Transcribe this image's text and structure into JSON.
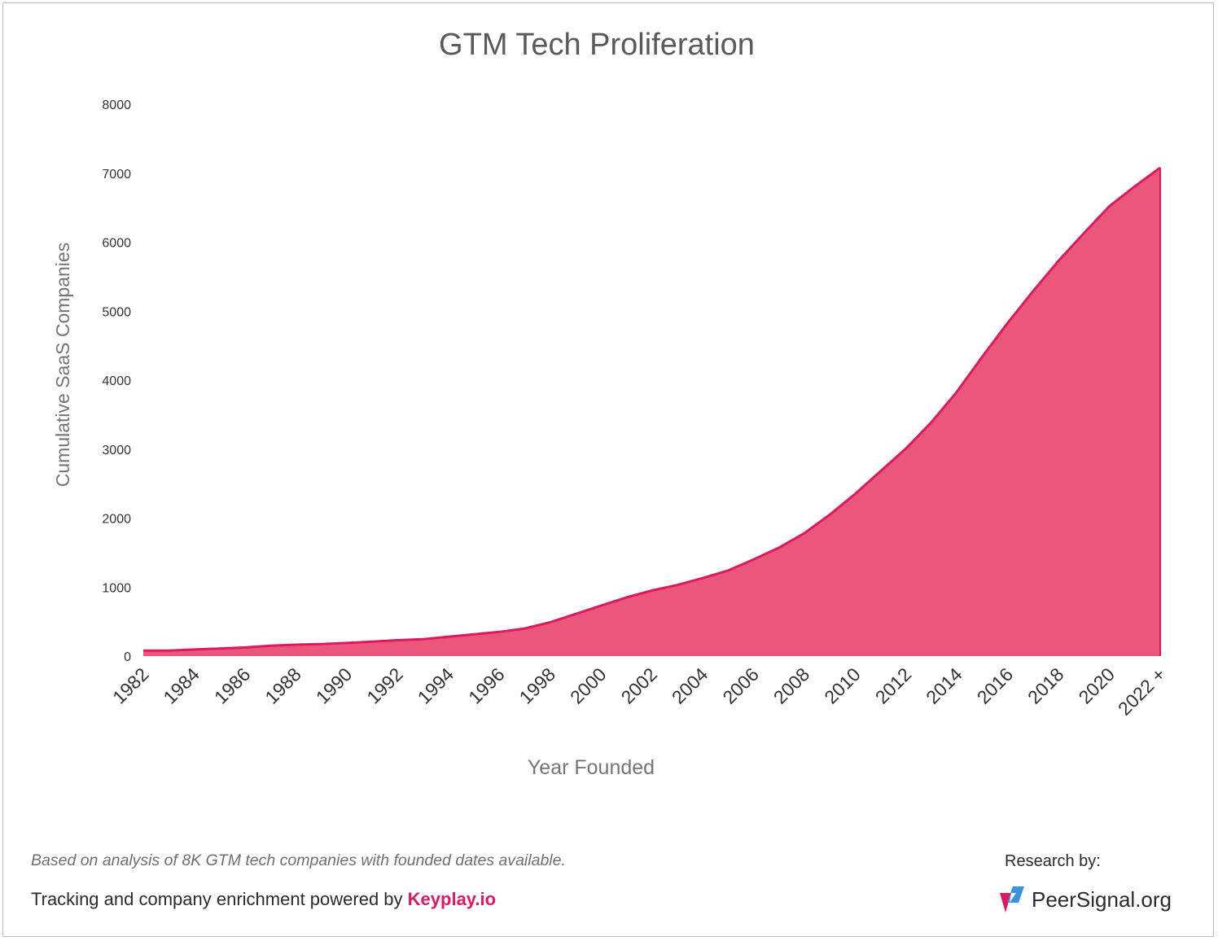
{
  "chart_data": {
    "type": "area",
    "title": "GTM Tech Proliferation",
    "xlabel": "Year Founded",
    "ylabel": "Cumulative SaaS Companies",
    "ylim": [
      0,
      8000
    ],
    "yticks": [
      "0",
      "1000",
      "2000",
      "3000",
      "4000",
      "5000",
      "6000",
      "7000",
      "8000"
    ],
    "x_tick_labels": [
      "1982",
      "1984",
      "1986",
      "1988",
      "1990",
      "1992",
      "1994",
      "1996",
      "1998",
      "2000",
      "2002",
      "2004",
      "2006",
      "2008",
      "2010",
      "2012",
      "2014",
      "2016",
      "2018",
      "2020",
      "2022 +"
    ],
    "x": [
      "1982",
      "1983",
      "1984",
      "1985",
      "1986",
      "1987",
      "1988",
      "1989",
      "1990",
      "1991",
      "1992",
      "1993",
      "1994",
      "1995",
      "1996",
      "1997",
      "1998",
      "1999",
      "2000",
      "2001",
      "2002",
      "2003",
      "2004",
      "2005",
      "2006",
      "2007",
      "2008",
      "2009",
      "2010",
      "2011",
      "2012",
      "2013",
      "2014",
      "2015",
      "2016",
      "2017",
      "2018",
      "2019",
      "2020",
      "2021",
      "2022 +"
    ],
    "series": [
      {
        "values": [
          80,
          80,
          95,
          110,
          125,
          150,
          165,
          175,
          190,
          210,
          230,
          245,
          280,
          315,
          350,
          400,
          490,
          610,
          730,
          850,
          950,
          1030,
          1130,
          1240,
          1400,
          1570,
          1780,
          2050,
          2350,
          2680,
          3010,
          3390,
          3830,
          4340,
          4830,
          5290,
          5730,
          6130,
          6520,
          6810,
          7080
        ]
      }
    ],
    "grid": false,
    "legend": "none",
    "colors": {
      "fill": "#eb567b",
      "line": "#e0195f"
    }
  },
  "footer": {
    "note": "Based on analysis of 8K GTM tech companies with founded dates available.",
    "credit_prefix": "Tracking and company enrichment powered by ",
    "credit_link": "Keyplay.io",
    "research_label": "Research by:",
    "brand_name": "PeerSignal.org"
  }
}
